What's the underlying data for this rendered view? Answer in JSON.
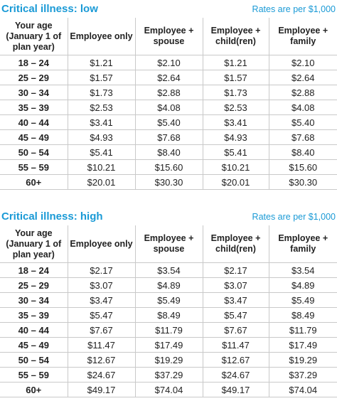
{
  "tables": [
    {
      "title": "Critical illness: low",
      "note": "Rates are per $1,000",
      "headers": [
        "Your age (January 1 of plan year)",
        "Employee only",
        "Employee + spouse",
        "Employee + child(ren)",
        "Employee + family"
      ],
      "rows": [
        [
          "18 – 24",
          "$1.21",
          "$2.10",
          "$1.21",
          "$2.10"
        ],
        [
          "25 – 29",
          "$1.57",
          "$2.64",
          "$1.57",
          "$2.64"
        ],
        [
          "30 – 34",
          "$1.73",
          "$2.88",
          "$1.73",
          "$2.88"
        ],
        [
          "35 – 39",
          "$2.53",
          "$4.08",
          "$2.53",
          "$4.08"
        ],
        [
          "40 – 44",
          "$3.41",
          "$5.40",
          "$3.41",
          "$5.40"
        ],
        [
          "45 – 49",
          "$4.93",
          "$7.68",
          "$4.93",
          "$7.68"
        ],
        [
          "50 – 54",
          "$5.41",
          "$8.40",
          "$5.41",
          "$8.40"
        ],
        [
          "55 – 59",
          "$10.21",
          "$15.60",
          "$10.21",
          "$15.60"
        ],
        [
          "60+",
          "$20.01",
          "$30.30",
          "$20.01",
          "$30.30"
        ]
      ]
    },
    {
      "title": "Critical illness: high",
      "note": "Rates are per $1,000",
      "headers": [
        "Your age (January 1 of plan year)",
        "Employee only",
        "Employee + spouse",
        "Employee + child(ren)",
        "Employee + family"
      ],
      "rows": [
        [
          "18 – 24",
          "$2.17",
          "$3.54",
          "$2.17",
          "$3.54"
        ],
        [
          "25 – 29",
          "$3.07",
          "$4.89",
          "$3.07",
          "$4.89"
        ],
        [
          "30 – 34",
          "$3.47",
          "$5.49",
          "$3.47",
          "$5.49"
        ],
        [
          "35 – 39",
          "$5.47",
          "$8.49",
          "$5.47",
          "$8.49"
        ],
        [
          "40 – 44",
          "$7.67",
          "$11.79",
          "$7.67",
          "$11.79"
        ],
        [
          "45 – 49",
          "$11.47",
          "$17.49",
          "$11.47",
          "$17.49"
        ],
        [
          "50 – 54",
          "$12.67",
          "$19.29",
          "$12.67",
          "$19.29"
        ],
        [
          "55 – 59",
          "$24.67",
          "$37.29",
          "$24.67",
          "$37.29"
        ],
        [
          "60+",
          "$49.17",
          "$74.04",
          "$49.17",
          "$74.04"
        ]
      ]
    }
  ]
}
